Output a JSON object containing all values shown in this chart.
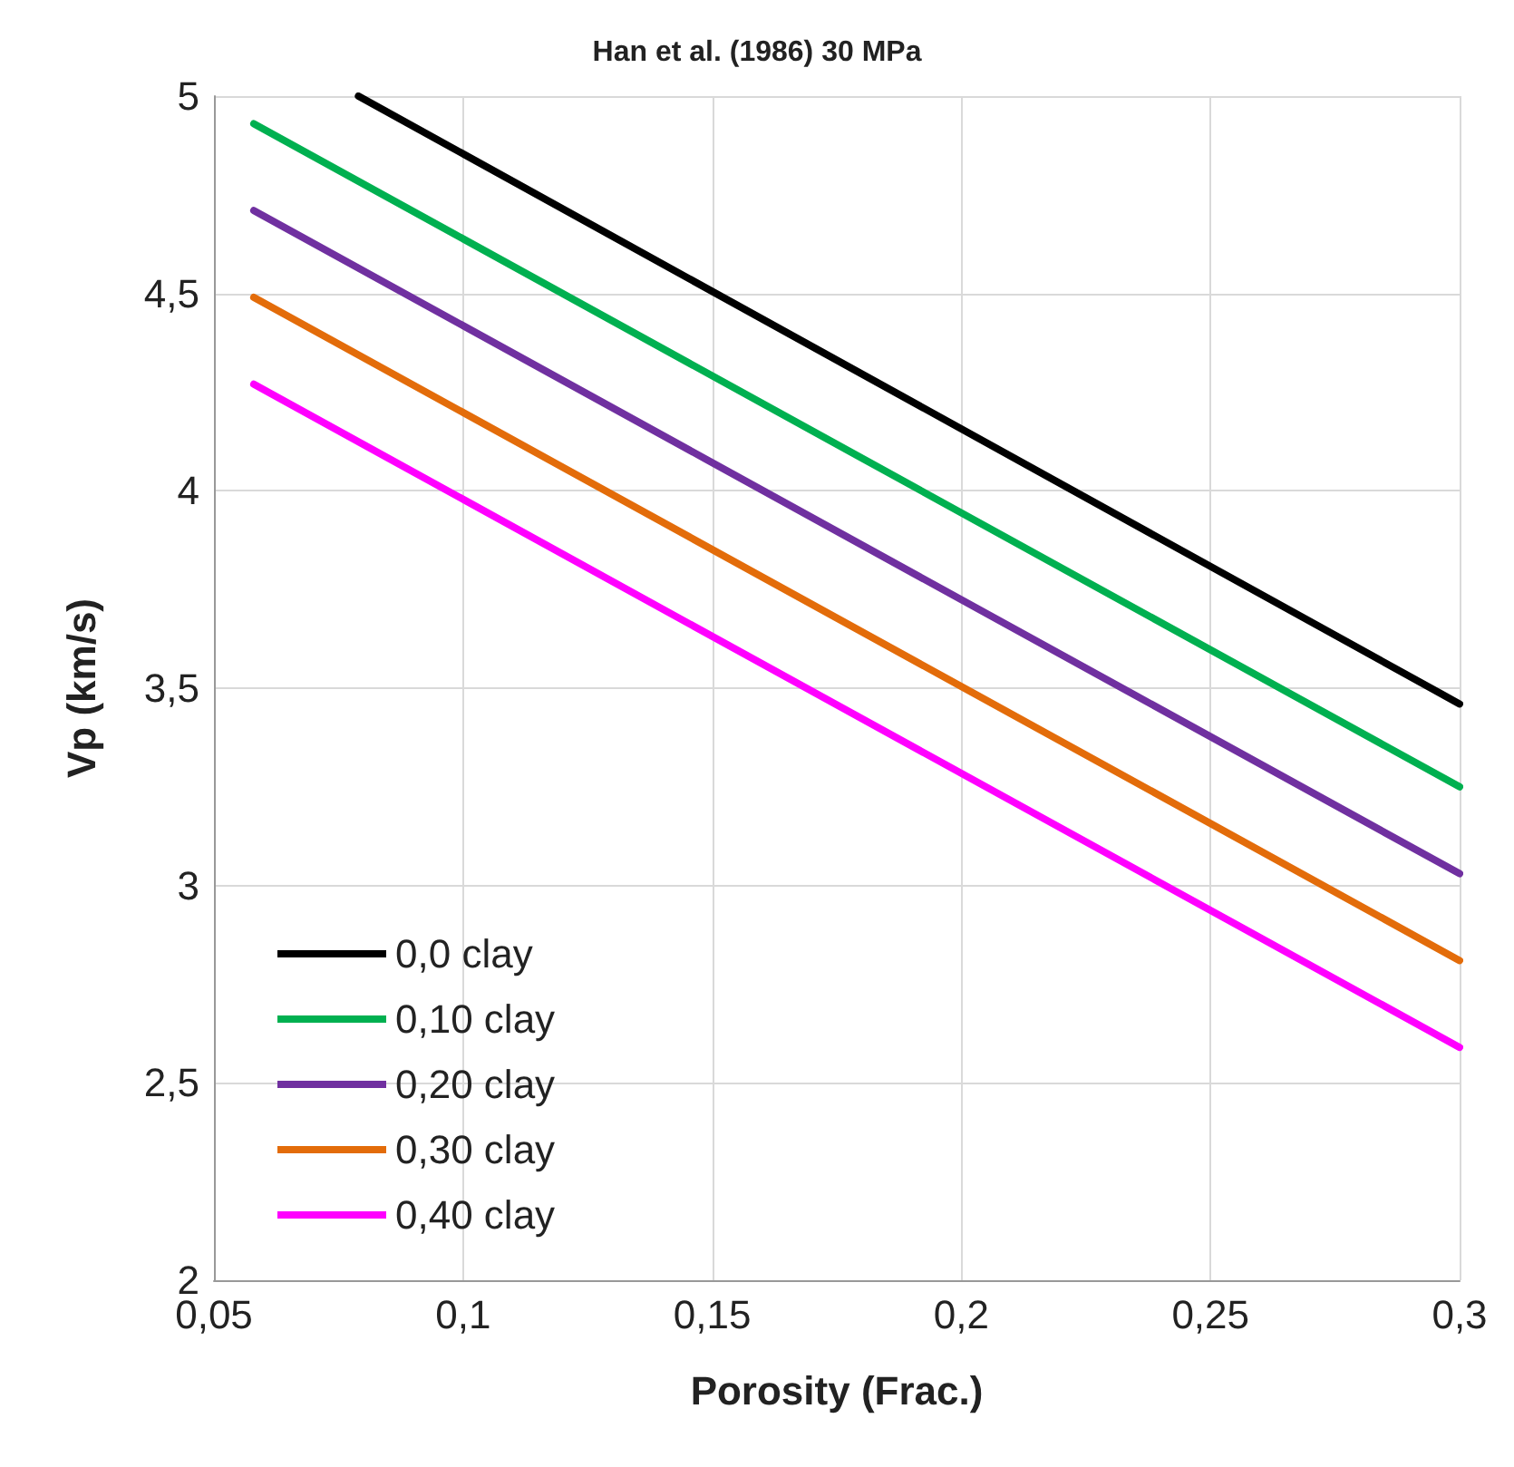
{
  "chart_data": {
    "type": "line",
    "title": "Han et al. (1986) 30 MPa",
    "xlabel": "Porosity (Frac.)",
    "ylabel": "Vp (km/s)",
    "xlim": [
      0.05,
      0.3
    ],
    "xticks": [
      {
        "value": 0.05,
        "label": "0,05"
      },
      {
        "value": 0.1,
        "label": "0,1"
      },
      {
        "value": 0.15,
        "label": "0,15"
      },
      {
        "value": 0.2,
        "label": "0,2"
      },
      {
        "value": 0.25,
        "label": "0,25"
      },
      {
        "value": 0.3,
        "label": "0,3"
      }
    ],
    "ylim": [
      2,
      5
    ],
    "yticks": [
      2,
      {
        "value": 2.5,
        "label": "2,5"
      },
      3,
      {
        "value": 3.5,
        "label": "3,5"
      },
      4,
      {
        "value": 4.5,
        "label": "4,5"
      },
      5
    ],
    "grid": true,
    "legend": "bottom left",
    "marker": "none",
    "line_style": "solid",
    "series": [
      {
        "name": "0,0 clay",
        "color": "#000000",
        "x": [
          0.079,
          0.3
        ],
        "values": [
          5.0,
          3.46
        ]
      },
      {
        "name": "0,10 clay",
        "color": "#00b050",
        "x": [
          0.058,
          0.3
        ],
        "values": [
          4.93,
          3.25
        ]
      },
      {
        "name": "0,20 clay",
        "color": "#7030a0",
        "x": [
          0.058,
          0.3
        ],
        "values": [
          4.71,
          3.03
        ]
      },
      {
        "name": "0,30 clay",
        "color": "#e36c0a",
        "x": [
          0.058,
          0.3
        ],
        "values": [
          4.49,
          2.81
        ]
      },
      {
        "name": "0,40 clay",
        "color": "#ff00ff",
        "x": [
          0.058,
          0.3
        ],
        "values": [
          4.27,
          2.59
        ]
      }
    ]
  }
}
